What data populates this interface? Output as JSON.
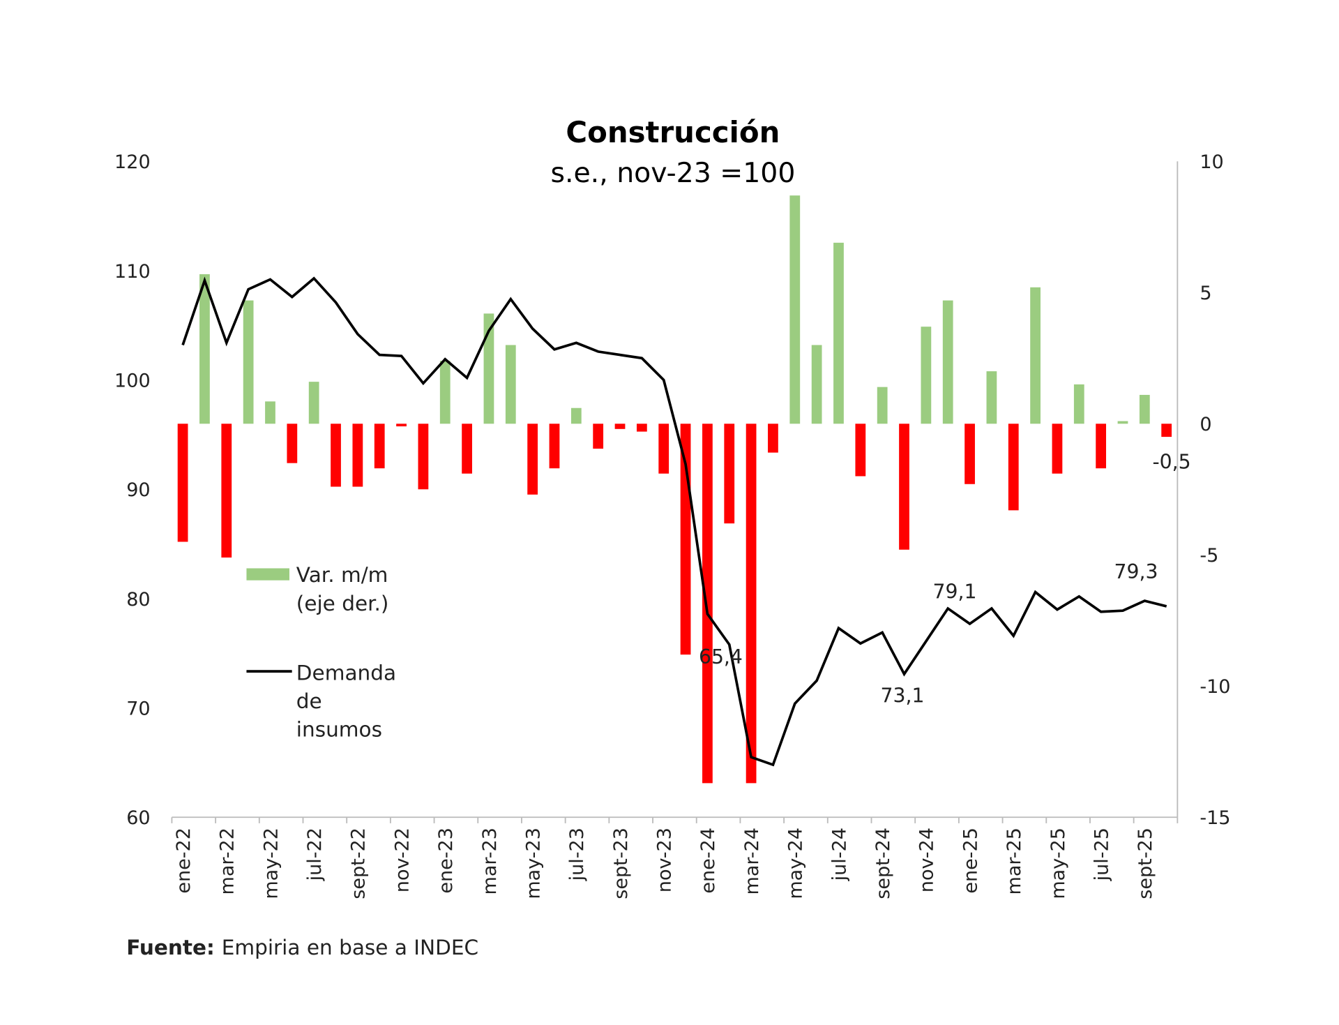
{
  "chart_data": {
    "type": "bar+line",
    "title": "Construcción",
    "subtitle": "s.e., nov-23 =100",
    "categories": [
      "ene-22",
      "feb-22",
      "mar-22",
      "abr-22",
      "may-22",
      "jun-22",
      "jul-22",
      "ago-22",
      "sept-22",
      "oct-22",
      "nov-22",
      "dic-22",
      "ene-23",
      "feb-23",
      "mar-23",
      "abr-23",
      "may-23",
      "jun-23",
      "jul-23",
      "ago-23",
      "sept-23",
      "oct-23",
      "nov-23",
      "dic-23",
      "ene-24",
      "feb-24",
      "mar-24",
      "abr-24",
      "may-24",
      "jun-24",
      "jul-24",
      "ago-24",
      "sept-24",
      "oct-24",
      "nov-24",
      "dic-24",
      "ene-25",
      "feb-25",
      "mar-25",
      "abr-25",
      "may-25",
      "jun-25",
      "jul-25",
      "ago-25",
      "sept-25",
      "oct-25"
    ],
    "x_tick_labels": [
      "ene-22",
      "mar-22",
      "may-22",
      "jul-22",
      "sept-22",
      "nov-22",
      "ene-23",
      "mar-23",
      "may-23",
      "jul-23",
      "sept-23",
      "nov-23",
      "ene-24",
      "mar-24",
      "may-24",
      "jul-24",
      "sept-24",
      "nov-24",
      "ene-25",
      "mar-25",
      "may-25",
      "jul-25",
      "sept-25"
    ],
    "left_axis": {
      "ylim": [
        60,
        120
      ],
      "ticks": [
        "60",
        "70",
        "80",
        "90",
        "100",
        "110",
        "120"
      ]
    },
    "right_axis": {
      "ylim": [
        -15,
        10
      ],
      "ticks": [
        "-15",
        "-10",
        "-5",
        "0",
        "5",
        "10"
      ]
    },
    "series": [
      {
        "name": "Var. m/m (eje der.)",
        "type": "bar",
        "axis": "right",
        "positive_color": "#9bcc80",
        "negative_color": "#ff0000",
        "values": [
          -4.5,
          5.7,
          -5.1,
          4.7,
          0.85,
          -1.5,
          1.6,
          -2.4,
          -2.4,
          -1.7,
          -0.1,
          -2.5,
          2.4,
          -1.9,
          4.2,
          3.0,
          -2.7,
          -1.7,
          0.6,
          -0.95,
          -0.2,
          -0.3,
          -1.9,
          -8.8,
          -13.7,
          -3.8,
          -13.7,
          -1.1,
          8.7,
          3.0,
          6.9,
          -2.0,
          1.4,
          -4.8,
          3.7,
          4.7,
          -2.3,
          2.0,
          -3.3,
          5.2,
          -1.9,
          1.5,
          -1.7,
          0.1,
          1.1,
          -0.5
        ]
      },
      {
        "name": "Demanda de insumos",
        "type": "line",
        "axis": "left",
        "color": "#000000",
        "values": [
          103.2,
          109.1,
          103.4,
          108.3,
          109.2,
          107.6,
          109.3,
          107.1,
          104.2,
          102.3,
          102.2,
          99.7,
          101.9,
          100.2,
          104.5,
          107.4,
          104.7,
          102.8,
          103.4,
          102.6,
          102.3,
          102.0,
          100.0,
          92.3,
          78.6,
          75.8,
          65.5,
          64.8,
          70.4,
          72.5,
          77.3,
          75.9,
          76.9,
          73.1,
          76.1,
          79.1,
          77.7,
          79.1,
          76.6,
          80.6,
          79.0,
          80.2,
          78.8,
          78.9,
          79.8,
          79.3
        ]
      }
    ],
    "annotations": [
      {
        "text": "65,4",
        "index": 25,
        "series": "line"
      },
      {
        "text": "73,1",
        "index": 33,
        "series": "line"
      },
      {
        "text": "79,1",
        "index": 35,
        "series": "line"
      },
      {
        "text": "79,3",
        "index": 44,
        "series": "line"
      },
      {
        "text": "-0,5",
        "index": 45,
        "series": "bar"
      }
    ],
    "legend": {
      "position": "left-middle",
      "items": [
        "Var. m/m",
        "(eje der.)",
        "Demanda",
        "de",
        "insumos"
      ]
    },
    "grid": false
  },
  "source": {
    "label": "Fuente:",
    "text": "Empiria en base a INDEC"
  }
}
